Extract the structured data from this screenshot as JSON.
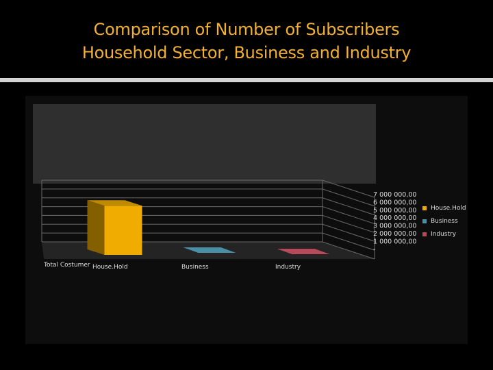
{
  "slide": {
    "title_line1": "Comparison of Number of Subscribers",
    "title_line2": "Household Sector, Business and Industry"
  },
  "colors": {
    "title": "#f2b134",
    "household": "#f0ad00",
    "business": "#4a8fa8",
    "industry": "#b54a5a"
  },
  "chart_data": {
    "type": "bar",
    "title": "",
    "row_label": "Total Costumer",
    "categories": [
      "House.Hold",
      "Business",
      "Industry"
    ],
    "series": [
      {
        "name": "House.Hold",
        "values": [
          6000000,
          0,
          0
        ]
      },
      {
        "name": "Business",
        "values": [
          0,
          0,
          0
        ]
      },
      {
        "name": "Industry",
        "values": [
          0,
          0,
          0
        ]
      }
    ],
    "y_ticks": [
      "7 000 000,00",
      "6 000 000,00",
      "5 000 000,00",
      "4 000 000,00",
      "3 000 000,00",
      "2 000 000,00",
      "1 000 000,00",
      "-"
    ],
    "ylim": [
      0,
      7000000
    ],
    "grid": true,
    "legend_position": "right",
    "three_d": true
  }
}
